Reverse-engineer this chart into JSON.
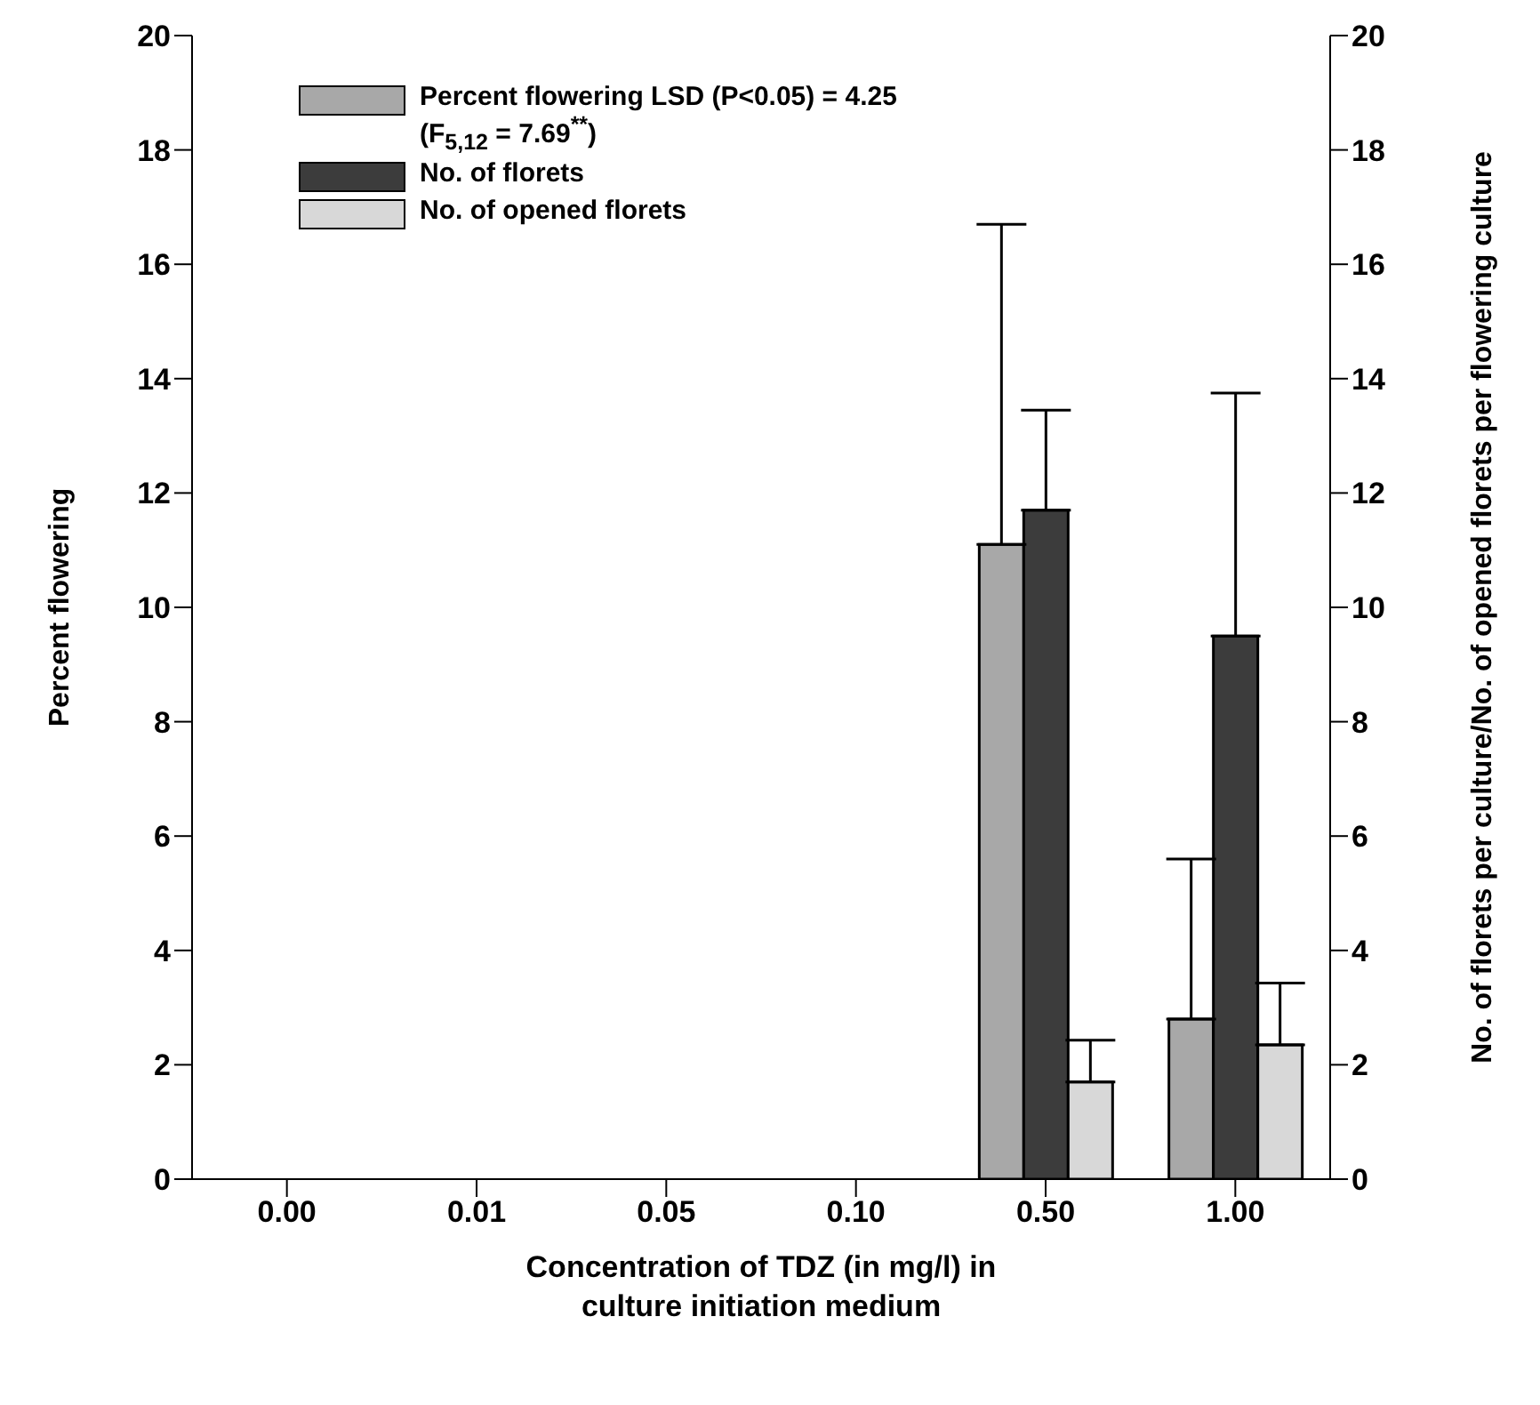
{
  "chart_data": {
    "type": "bar",
    "categories": [
      "0.00",
      "0.01",
      "0.05",
      "0.10",
      "0.50",
      "1.00"
    ],
    "xlabel": "Concentration of TDZ (in mg/l) in\nculture initiation medium",
    "ylabel": "Percent flowering",
    "y2label": "No. of florets per culture/No. of opened florets per flowering culture",
    "series": [
      {
        "name": "Percent flowering LSD (P<0.05) = 4.25\n(F$_{5,12}$ = 7.69$^{**}$)",
        "color": "#a8a8a8",
        "values": [
          0,
          0,
          0,
          0,
          11.1,
          2.8
        ],
        "errors": [
          null,
          null,
          null,
          null,
          [
            11.1,
            16.7
          ],
          [
            2.8,
            5.6
          ]
        ]
      },
      {
        "name": "No. of florets",
        "color": "#3c3c3c",
        "values": [
          0,
          0,
          0,
          0,
          11.7,
          9.5
        ],
        "errors": [
          null,
          null,
          null,
          null,
          [
            11.7,
            13.45
          ],
          [
            9.5,
            13.75
          ]
        ]
      },
      {
        "name": "No. of opened florets",
        "color": "#d8d8d8",
        "values": [
          0,
          0,
          0,
          0,
          1.7,
          2.35
        ],
        "errors": [
          null,
          null,
          null,
          null,
          [
            1.7,
            2.43
          ],
          [
            2.35,
            3.43
          ]
        ]
      }
    ],
    "ylim": [
      0,
      20
    ],
    "yticks": [
      0,
      2,
      4,
      6,
      8,
      10,
      12,
      14,
      16,
      18,
      20
    ],
    "y2lim": [
      0,
      20
    ],
    "y2ticks": [
      0,
      2,
      4,
      6,
      8,
      10,
      12,
      14,
      16,
      18,
      20
    ],
    "grid": false,
    "legend": "top left"
  }
}
